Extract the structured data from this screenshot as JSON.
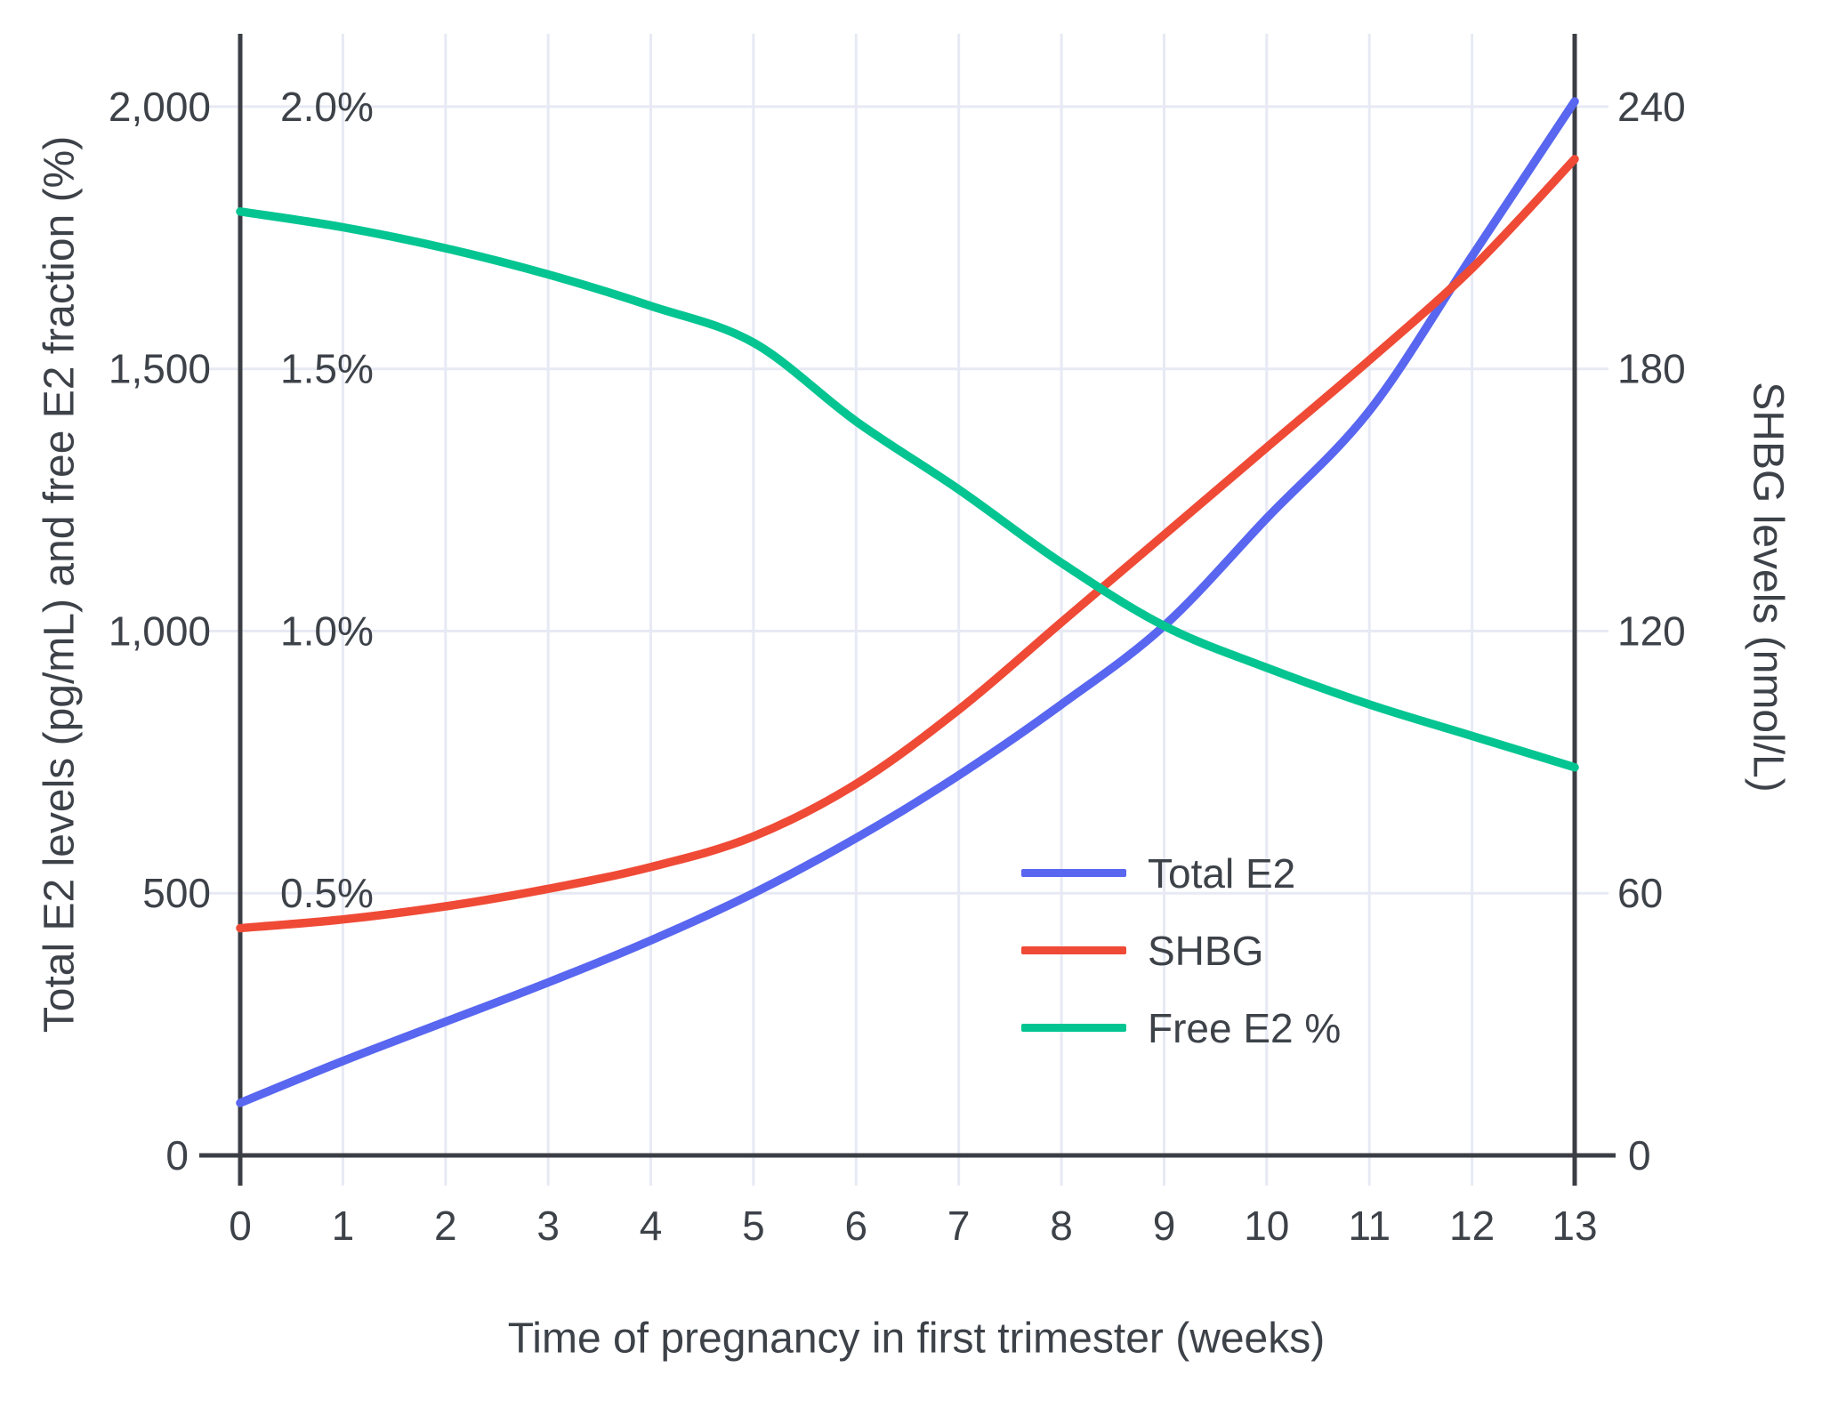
{
  "chart_data": {
    "type": "line",
    "title": "",
    "xlabel": "Time of pregnancy in first trimester (weeks)",
    "ylabel_left": "Total E2 levels (pg/mL) and free E2 fraction (%)",
    "ylabel_right": "SHBG levels (nmol/L)",
    "x": [
      0,
      1,
      2,
      3,
      4,
      5,
      6,
      7,
      8,
      9,
      10,
      11,
      12,
      13
    ],
    "x_ticks": [
      "0",
      "1",
      "2",
      "3",
      "4",
      "5",
      "6",
      "7",
      "8",
      "9",
      "10",
      "11",
      "12",
      "13"
    ],
    "y_left_ticks": [
      {
        "value": 0,
        "label": "0"
      },
      {
        "value": 500,
        "label": "500"
      },
      {
        "value": 1000,
        "label": "1,000"
      },
      {
        "value": 1500,
        "label": "1,500"
      },
      {
        "value": 2000,
        "label": "2,000"
      }
    ],
    "y_right_ticks": [
      {
        "value": 0,
        "label": "0"
      },
      {
        "value": 60,
        "label": "60"
      },
      {
        "value": 120,
        "label": "120"
      },
      {
        "value": 180,
        "label": "180"
      },
      {
        "value": 240,
        "label": "240"
      }
    ],
    "percent_annotations": [
      {
        "label": "2.0%",
        "at_left_value": 2000
      },
      {
        "label": "1.5%",
        "at_left_value": 1500
      },
      {
        "label": "1.0%",
        "at_left_value": 1000
      },
      {
        "label": "0.5%",
        "at_left_value": 500
      }
    ],
    "y_left_range": [
      0,
      2139
    ],
    "y_right_range": [
      0,
      256.7
    ],
    "x_range": [
      0,
      13
    ],
    "grid": true,
    "legend_position": "inside-center-right",
    "series": [
      {
        "name": "Total E2",
        "unit": "pg/mL",
        "axis": "left",
        "color": "#5866F0",
        "values": [
          100,
          180,
          255,
          330,
          410,
          500,
          605,
          725,
          860,
          1010,
          1215,
          1420,
          1715,
          2010
        ]
      },
      {
        "name": "SHBG",
        "unit": "nmol/L",
        "axis": "right",
        "color": "#EF4A36",
        "values": [
          52,
          54,
          57,
          61,
          66,
          73,
          85,
          102,
          122,
          142,
          162,
          182,
          203,
          228
        ]
      },
      {
        "name": "Free E2 %",
        "unit": "%",
        "axis": "left_percent",
        "color": "#04C591",
        "values": [
          1.8,
          1.77,
          1.73,
          1.68,
          1.62,
          1.55,
          1.4,
          1.27,
          1.13,
          1.01,
          0.93,
          0.86,
          0.8,
          0.74
        ]
      }
    ]
  },
  "colors": {
    "background": "#FFFFFF",
    "grid": "#E7EAF4",
    "axis": "#3B3E45",
    "text": "#3D4249",
    "series_blue": "#5866F0",
    "series_red": "#EF4A36",
    "series_green": "#04C591"
  }
}
